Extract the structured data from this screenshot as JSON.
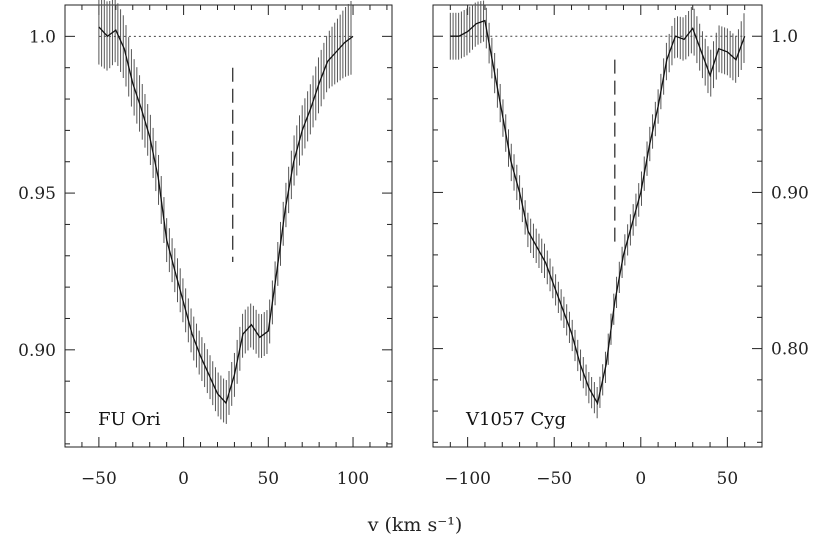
{
  "figure": {
    "xlabel": "v (km s⁻¹)"
  },
  "chart_data": [
    {
      "type": "line",
      "label": "FU Ori",
      "xlim": [
        -70,
        123
      ],
      "ylim": [
        0.869,
        1.01
      ],
      "xticks": [
        -50,
        0,
        50,
        100
      ],
      "xtick_labels": [
        "−50",
        "0",
        "50",
        "100"
      ],
      "yticks": [
        0.9,
        0.95,
        1.0
      ],
      "ytick_labels": [
        "0.90",
        "0.95",
        "1.0"
      ],
      "y_axis_side": "left",
      "continuum": 1.0,
      "marker_x": 29,
      "marker_y_range": [
        0.928,
        0.99
      ],
      "x": [
        -50,
        -45,
        -40,
        -35,
        -30,
        -25,
        -20,
        -15,
        -10,
        -5,
        0,
        5,
        10,
        15,
        20,
        25,
        30,
        35,
        40,
        45,
        50,
        55,
        60,
        65,
        70,
        75,
        80,
        85,
        90,
        95,
        100
      ],
      "y": [
        1.003,
        1.0,
        1.002,
        0.996,
        0.985,
        0.977,
        0.968,
        0.955,
        0.935,
        0.925,
        0.915,
        0.905,
        0.898,
        0.892,
        0.886,
        0.883,
        0.892,
        0.905,
        0.908,
        0.904,
        0.906,
        0.925,
        0.945,
        0.96,
        0.97,
        0.977,
        0.985,
        0.992,
        0.995,
        0.998,
        1.0
      ],
      "err": [
        0.012,
        0.011,
        0.01,
        0.01,
        0.009,
        0.009,
        0.008,
        0.008,
        0.007,
        0.007,
        0.007,
        0.007,
        0.007,
        0.007,
        0.007,
        0.007,
        0.007,
        0.007,
        0.007,
        0.007,
        0.007,
        0.007,
        0.007,
        0.008,
        0.008,
        0.008,
        0.009,
        0.009,
        0.01,
        0.011,
        0.012
      ]
    },
    {
      "type": "line",
      "label": "V1057 Cyg",
      "xlim": [
        -120,
        70
      ],
      "ylim": [
        0.737,
        1.02
      ],
      "xticks": [
        -100,
        -50,
        0,
        50
      ],
      "xtick_labels": [
        "−100",
        "−50",
        "0",
        "50"
      ],
      "yticks": [
        0.8,
        0.9,
        1.0
      ],
      "ytick_labels": [
        "0.80",
        "0.90",
        "1.0"
      ],
      "y_axis_side": "right",
      "continuum": 1.0,
      "marker_x": -15,
      "marker_y_range": [
        0.865,
        0.985
      ],
      "x": [
        -110,
        -105,
        -100,
        -95,
        -90,
        -85,
        -80,
        -75,
        -70,
        -65,
        -60,
        -55,
        -50,
        -45,
        -40,
        -35,
        -30,
        -25,
        -20,
        -15,
        -10,
        -5,
        0,
        5,
        10,
        15,
        20,
        25,
        30,
        35,
        40,
        45,
        50,
        55,
        60
      ],
      "y": [
        1.0,
        1.0,
        1.003,
        1.008,
        1.01,
        0.98,
        0.95,
        0.92,
        0.9,
        0.875,
        0.865,
        0.855,
        0.84,
        0.825,
        0.81,
        0.79,
        0.775,
        0.765,
        0.79,
        0.83,
        0.86,
        0.88,
        0.9,
        0.93,
        0.955,
        0.985,
        1.0,
        0.998,
        1.005,
        0.99,
        0.975,
        0.992,
        0.99,
        0.985,
        1.0
      ],
      "err": [
        0.015,
        0.015,
        0.015,
        0.014,
        0.013,
        0.013,
        0.012,
        0.012,
        0.011,
        0.011,
        0.011,
        0.011,
        0.01,
        0.01,
        0.01,
        0.01,
        0.01,
        0.01,
        0.01,
        0.01,
        0.01,
        0.01,
        0.011,
        0.011,
        0.011,
        0.012,
        0.013,
        0.014,
        0.015,
        0.015,
        0.015,
        0.015,
        0.015,
        0.015,
        0.016
      ]
    }
  ]
}
